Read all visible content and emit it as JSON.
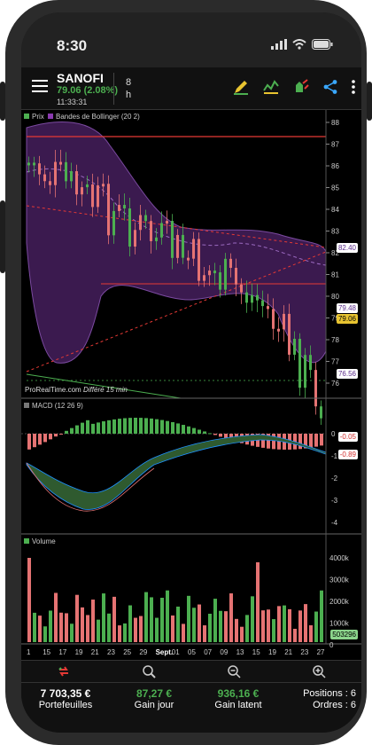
{
  "statusbar": {
    "time": "8:30"
  },
  "header": {
    "symbol": "SANOFI",
    "price": "79.06 (2.08%)",
    "time": "11:33:31",
    "timeframe_value": "8",
    "timeframe_unit": "h"
  },
  "panels": {
    "price": {
      "legend_price": "Prix",
      "legend_bb": "Bandes de Bollinger (20 2)",
      "watermark": "ProRealTime.com",
      "delay": "Différé 15 min",
      "axis": [
        "88",
        "87",
        "86",
        "85",
        "84",
        "83",
        "82",
        "81",
        "80",
        "79",
        "78",
        "77",
        "76"
      ],
      "tags": [
        {
          "text": "82.40",
          "bg": "#ffffff",
          "fg": "#5a2a8a"
        },
        {
          "text": "79.48",
          "bg": "#ffffff",
          "fg": "#5a2a8a"
        },
        {
          "text": "79.06",
          "bg": "#e8c430",
          "fg": "#000000"
        },
        {
          "text": "76.56",
          "bg": "#ffffff",
          "fg": "#5a2a8a"
        }
      ]
    },
    "macd": {
      "legend": "MACD (12 26 9)",
      "axis": [
        "0",
        "-1",
        "-2",
        "-3",
        "-4"
      ],
      "tags": [
        {
          "text": "-0.05",
          "bg": "#ffffff",
          "fg": "#d32f2f"
        },
        {
          "text": "-0.89",
          "bg": "#ffffff",
          "fg": "#d32f2f"
        }
      ]
    },
    "volume": {
      "legend": "Volume",
      "axis": [
        "4000k",
        "3000k",
        "2000k",
        "1000k",
        "0"
      ],
      "tag": {
        "text": "503296",
        "bg": "#8bd48b",
        "fg": "#000000"
      }
    }
  },
  "xaxis": [
    "1",
    "15",
    "17",
    "19",
    "21",
    "23",
    "25",
    "29",
    "Sept.",
    "01",
    "05",
    "07",
    "09",
    "13",
    "15",
    "19",
    "21",
    "23",
    "27"
  ],
  "toolbar": {
    "icons": [
      "pencil-icon",
      "indicator-icon",
      "alert-icon",
      "share-icon",
      "more-icon"
    ]
  },
  "footer": {
    "zoom_icons": [
      "swap-icon",
      "zoom-fit-icon",
      "zoom-out-icon",
      "zoom-in-icon"
    ],
    "portfolio_value": "7 703,35 €",
    "portfolio_label": "Portefeuilles",
    "gain_day_value": "87,27 €",
    "gain_day_label": "Gain jour",
    "gain_latent_value": "936,16 €",
    "gain_latent_label": "Gain latent",
    "positions": "Positions : 6",
    "orders": "Ordres : 6"
  },
  "colors": {
    "up": "#4caf50",
    "down": "#e57373",
    "band": "#3b1a4f",
    "redline": "#e53935"
  }
}
